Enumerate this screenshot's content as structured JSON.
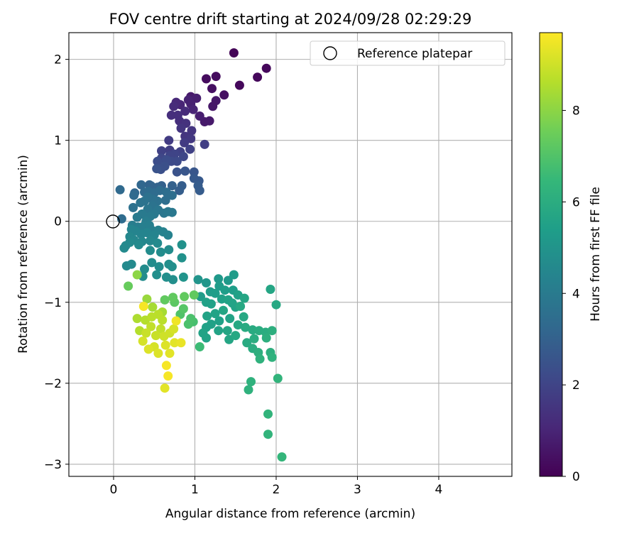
{
  "chart_data": {
    "type": "scatter",
    "title": "FOV centre drift starting at 2024/09/28 02:29:29",
    "xlabel": "Angular distance from reference (arcmin)",
    "ylabel": "Rotation from reference (arcmin)",
    "xlim": [
      -0.55,
      4.9
    ],
    "ylim": [
      -3.15,
      2.33
    ],
    "xticks": [
      0,
      1,
      2,
      3,
      4
    ],
    "yticks": [
      -3,
      -2,
      -1,
      0,
      1,
      2
    ],
    "xtick_labels": [
      "0",
      "1",
      "2",
      "3",
      "4"
    ],
    "ytick_labels": [
      "−3",
      "−2",
      "−1",
      "0",
      "1",
      "2"
    ],
    "grid": true,
    "legend": {
      "position": "top-right",
      "entries": [
        {
          "label": "Reference platepar",
          "marker": "open-circle"
        }
      ]
    },
    "reference_point": {
      "label": "Reference platepar",
      "x": 0,
      "y": 0
    },
    "colorbar": {
      "label": "Hours from first FF file",
      "range": [
        0,
        9.7
      ],
      "ticks": [
        0,
        2,
        4,
        6,
        8
      ],
      "tick_labels": [
        "0",
        "2",
        "4",
        "6",
        "8"
      ],
      "colormap": "viridis",
      "stops": [
        "#440154",
        "#482878",
        "#3e4989",
        "#31688e",
        "#26828e",
        "#1f9e89",
        "#35b779",
        "#6ece58",
        "#b5de2b",
        "#fde725"
      ]
    },
    "points": [
      [
        1.48,
        2.08,
        0.1
      ],
      [
        1.77,
        1.78,
        0.2
      ],
      [
        1.88,
        1.89,
        0.2
      ],
      [
        1.26,
        1.79,
        0.3
      ],
      [
        1.14,
        1.76,
        0.3
      ],
      [
        1.55,
        1.68,
        0.2
      ],
      [
        1.36,
        1.56,
        0.4
      ],
      [
        1.21,
        1.64,
        0.4
      ],
      [
        1.26,
        1.49,
        0.6
      ],
      [
        1.22,
        1.42,
        0.6
      ],
      [
        1.18,
        1.24,
        0.7
      ],
      [
        1.12,
        1.23,
        0.7
      ],
      [
        1.06,
        1.3,
        0.8
      ],
      [
        0.95,
        1.54,
        0.7
      ],
      [
        1.02,
        1.52,
        0.8
      ],
      [
        0.92,
        1.5,
        0.9
      ],
      [
        0.95,
        1.45,
        0.9
      ],
      [
        0.98,
        1.38,
        1.0
      ],
      [
        0.82,
        1.44,
        1.0
      ],
      [
        0.77,
        1.47,
        1.1
      ],
      [
        0.74,
        1.42,
        1.2
      ],
      [
        0.88,
        1.36,
        1.2
      ],
      [
        0.79,
        1.31,
        1.3
      ],
      [
        0.71,
        1.31,
        1.3
      ],
      [
        0.81,
        1.24,
        1.3
      ],
      [
        0.89,
        1.21,
        1.4
      ],
      [
        0.96,
        1.12,
        1.5
      ],
      [
        0.83,
        1.15,
        1.5
      ],
      [
        0.88,
        1.05,
        1.5
      ],
      [
        0.95,
        1.02,
        1.6
      ],
      [
        0.68,
        1.0,
        1.7
      ],
      [
        0.87,
        0.97,
        1.7
      ],
      [
        1.12,
        0.95,
        1.8
      ],
      [
        0.69,
        0.88,
        1.8
      ],
      [
        0.59,
        0.87,
        1.9
      ],
      [
        0.82,
        0.86,
        1.9
      ],
      [
        0.94,
        0.89,
        1.9
      ],
      [
        0.75,
        0.83,
        2.0
      ],
      [
        0.69,
        0.81,
        2.0
      ],
      [
        0.59,
        0.78,
        2.1
      ],
      [
        0.86,
        0.8,
        2.1
      ],
      [
        0.78,
        0.74,
        2.2
      ],
      [
        0.71,
        0.74,
        2.2
      ],
      [
        0.65,
        0.76,
        2.3
      ],
      [
        0.54,
        0.74,
        2.3
      ],
      [
        0.63,
        0.68,
        2.4
      ],
      [
        0.58,
        0.64,
        2.4
      ],
      [
        0.53,
        0.65,
        2.5
      ],
      [
        0.78,
        0.61,
        2.5
      ],
      [
        0.88,
        0.62,
        2.6
      ],
      [
        0.99,
        0.61,
        2.6
      ],
      [
        1.05,
        0.5,
        2.7
      ],
      [
        0.99,
        0.53,
        2.7
      ],
      [
        1.04,
        0.44,
        2.8
      ],
      [
        1.06,
        0.38,
        2.8
      ],
      [
        0.84,
        0.44,
        2.9
      ],
      [
        0.81,
        0.38,
        2.9
      ],
      [
        0.72,
        0.44,
        3.0
      ],
      [
        0.59,
        0.44,
        3.0
      ],
      [
        0.54,
        0.42,
        3.1
      ],
      [
        0.46,
        0.44,
        3.1
      ],
      [
        0.44,
        0.45,
        3.1
      ],
      [
        0.34,
        0.45,
        3.2
      ],
      [
        0.26,
        0.35,
        3.2
      ],
      [
        0.25,
        0.32,
        3.3
      ],
      [
        0.08,
        0.39,
        3.3
      ],
      [
        0.38,
        0.36,
        3.3
      ],
      [
        0.43,
        0.37,
        3.4
      ],
      [
        0.5,
        0.35,
        3.4
      ],
      [
        0.57,
        0.38,
        3.4
      ],
      [
        0.65,
        0.36,
        3.5
      ],
      [
        0.72,
        0.32,
        3.5
      ],
      [
        0.64,
        0.26,
        3.5
      ],
      [
        0.54,
        0.25,
        3.6
      ],
      [
        0.48,
        0.27,
        3.6
      ],
      [
        0.42,
        0.3,
        3.6
      ],
      [
        0.38,
        0.25,
        3.7
      ],
      [
        0.33,
        0.23,
        3.7
      ],
      [
        0.48,
        0.19,
        3.7
      ],
      [
        0.42,
        0.15,
        3.8
      ],
      [
        0.55,
        0.14,
        3.8
      ],
      [
        0.62,
        0.1,
        3.8
      ],
      [
        0.67,
        0.12,
        3.9
      ],
      [
        0.72,
        0.11,
        3.9
      ],
      [
        0.5,
        0.09,
        3.9
      ],
      [
        0.45,
        0.06,
        4.0
      ],
      [
        0.35,
        0.09,
        4.0
      ],
      [
        0.24,
        0.17,
        3.6
      ],
      [
        0.29,
        0.05,
        4.0
      ],
      [
        0.1,
        0.03,
        3.4
      ],
      [
        0.4,
        0.0,
        4.1
      ],
      [
        0.23,
        -0.05,
        4.1
      ],
      [
        0.3,
        -0.07,
        4.1
      ],
      [
        0.37,
        -0.06,
        4.2
      ],
      [
        0.44,
        -0.05,
        4.2
      ],
      [
        0.47,
        -0.11,
        4.2
      ],
      [
        0.55,
        -0.11,
        4.3
      ],
      [
        0.61,
        -0.13,
        4.3
      ],
      [
        0.67,
        -0.17,
        4.3
      ],
      [
        0.5,
        -0.17,
        4.4
      ],
      [
        0.41,
        -0.14,
        4.4
      ],
      [
        0.34,
        -0.16,
        4.4
      ],
      [
        0.27,
        -0.12,
        4.4
      ],
      [
        0.22,
        -0.1,
        4.4
      ],
      [
        0.2,
        -0.19,
        4.5
      ],
      [
        0.25,
        -0.23,
        4.5
      ],
      [
        0.35,
        -0.25,
        4.5
      ],
      [
        0.45,
        -0.24,
        4.5
      ],
      [
        0.54,
        -0.27,
        4.6
      ],
      [
        0.31,
        -0.29,
        4.6
      ],
      [
        0.2,
        -0.26,
        4.6
      ],
      [
        0.15,
        -0.3,
        4.6
      ],
      [
        0.13,
        -0.33,
        4.6
      ],
      [
        0.45,
        -0.36,
        4.7
      ],
      [
        0.58,
        -0.38,
        4.7
      ],
      [
        0.68,
        -0.35,
        4.7
      ],
      [
        0.84,
        -0.29,
        4.9
      ],
      [
        0.84,
        -0.45,
        4.9
      ],
      [
        0.68,
        -0.53,
        4.8
      ],
      [
        0.72,
        -0.56,
        4.8
      ],
      [
        0.56,
        -0.56,
        4.7
      ],
      [
        0.47,
        -0.51,
        4.7
      ],
      [
        0.22,
        -0.53,
        4.6
      ],
      [
        0.16,
        -0.55,
        4.6
      ],
      [
        0.38,
        -0.59,
        4.7
      ],
      [
        0.53,
        -0.66,
        4.8
      ],
      [
        0.36,
        -0.68,
        4.7
      ],
      [
        0.65,
        -0.69,
        4.8
      ],
      [
        0.73,
        -0.72,
        4.8
      ],
      [
        0.86,
        -0.69,
        5.0
      ],
      [
        1.04,
        -0.72,
        5.0
      ],
      [
        1.14,
        -0.76,
        5.1
      ],
      [
        1.29,
        -0.71,
        5.2
      ],
      [
        1.41,
        -0.73,
        5.2
      ],
      [
        1.48,
        -0.66,
        5.3
      ],
      [
        1.19,
        -0.87,
        5.3
      ],
      [
        1.3,
        -0.8,
        5.3
      ],
      [
        1.37,
        -0.85,
        5.4
      ],
      [
        1.47,
        -0.85,
        5.4
      ],
      [
        1.53,
        -0.91,
        5.5
      ],
      [
        1.25,
        -0.89,
        5.4
      ],
      [
        1.07,
        -0.93,
        5.3
      ],
      [
        1.14,
        -1.0,
        5.5
      ],
      [
        1.2,
        -1.02,
        5.5
      ],
      [
        1.33,
        -0.96,
        5.5
      ],
      [
        1.41,
        -0.97,
        5.6
      ],
      [
        1.46,
        -1.01,
        5.6
      ],
      [
        1.5,
        -1.06,
        5.6
      ],
      [
        1.61,
        -0.95,
        5.7
      ],
      [
        1.93,
        -0.84,
        5.7
      ],
      [
        2.0,
        -1.03,
        5.8
      ],
      [
        1.56,
        -1.05,
        5.8
      ],
      [
        1.35,
        -1.1,
        5.7
      ],
      [
        1.25,
        -1.14,
        5.6
      ],
      [
        1.15,
        -1.17,
        5.6
      ],
      [
        1.2,
        -1.27,
        5.5
      ],
      [
        1.3,
        -1.23,
        5.5
      ],
      [
        1.43,
        -1.2,
        5.6
      ],
      [
        1.6,
        -1.18,
        5.8
      ],
      [
        1.62,
        -1.31,
        5.9
      ],
      [
        1.53,
        -1.28,
        5.8
      ],
      [
        1.4,
        -1.35,
        5.7
      ],
      [
        1.29,
        -1.35,
        5.6
      ],
      [
        1.14,
        -1.31,
        5.5
      ],
      [
        1.1,
        -1.38,
        5.6
      ],
      [
        1.14,
        -1.44,
        5.6
      ],
      [
        1.42,
        -1.46,
        5.7
      ],
      [
        1.5,
        -1.41,
        5.8
      ],
      [
        1.71,
        -1.34,
        5.9
      ],
      [
        1.79,
        -1.35,
        6.0
      ],
      [
        1.87,
        -1.37,
        6.0
      ],
      [
        1.95,
        -1.35,
        6.1
      ],
      [
        1.88,
        -1.44,
        6.1
      ],
      [
        1.73,
        -1.45,
        6.0
      ],
      [
        1.64,
        -1.5,
        5.9
      ],
      [
        1.71,
        -1.57,
        6.0
      ],
      [
        1.78,
        -1.62,
        6.1
      ],
      [
        1.93,
        -1.62,
        6.1
      ],
      [
        1.95,
        -1.68,
        6.2
      ],
      [
        1.8,
        -1.7,
        6.2
      ],
      [
        1.69,
        -1.98,
        6.2
      ],
      [
        1.66,
        -2.08,
        6.2
      ],
      [
        2.02,
        -1.94,
        6.3
      ],
      [
        1.9,
        -2.38,
        6.3
      ],
      [
        1.9,
        -2.63,
        6.3
      ],
      [
        2.07,
        -2.91,
        6.4
      ],
      [
        1.06,
        -1.55,
        6.6
      ],
      [
        0.98,
        -1.24,
        6.8
      ],
      [
        0.92,
        -1.27,
        6.9
      ],
      [
        0.95,
        -1.2,
        6.9
      ],
      [
        0.82,
        -1.15,
        7.0
      ],
      [
        0.86,
        -1.08,
        7.1
      ],
      [
        0.75,
        -1.0,
        7.2
      ],
      [
        0.73,
        -0.94,
        7.3
      ],
      [
        0.87,
        -0.93,
        7.3
      ],
      [
        0.99,
        -0.91,
        7.3
      ],
      [
        0.63,
        -0.97,
        7.3
      ],
      [
        0.18,
        -0.8,
        7.4
      ],
      [
        0.29,
        -0.66,
        8.0
      ],
      [
        0.41,
        -0.96,
        8.2
      ],
      [
        0.48,
        -1.06,
        8.4
      ],
      [
        0.6,
        -1.12,
        8.4
      ],
      [
        0.29,
        -1.2,
        8.5
      ],
      [
        0.32,
        -1.35,
        8.6
      ],
      [
        0.39,
        -1.22,
        8.6
      ],
      [
        0.47,
        -1.18,
        8.7
      ],
      [
        0.55,
        -1.15,
        8.7
      ],
      [
        0.6,
        -1.22,
        8.7
      ],
      [
        0.46,
        -1.3,
        8.8
      ],
      [
        0.58,
        -1.33,
        8.8
      ],
      [
        0.4,
        -1.38,
        8.9
      ],
      [
        0.52,
        -1.41,
        8.9
      ],
      [
        0.62,
        -1.42,
        9.0
      ],
      [
        0.69,
        -1.38,
        9.0
      ],
      [
        0.74,
        -1.33,
        9.1
      ],
      [
        0.36,
        -1.48,
        9.1
      ],
      [
        0.5,
        -1.55,
        9.1
      ],
      [
        0.55,
        -1.63,
        9.2
      ],
      [
        0.43,
        -1.58,
        9.2
      ],
      [
        0.64,
        -1.53,
        9.2
      ],
      [
        0.69,
        -1.63,
        9.3
      ],
      [
        0.75,
        -1.5,
        9.3
      ],
      [
        0.83,
        -1.5,
        9.4
      ],
      [
        0.77,
        -1.23,
        9.5
      ],
      [
        0.37,
        -1.05,
        9.6
      ],
      [
        0.65,
        -1.78,
        9.6
      ],
      [
        0.67,
        -1.91,
        9.6
      ],
      [
        0.63,
        -2.06,
        9.3
      ]
    ]
  }
}
